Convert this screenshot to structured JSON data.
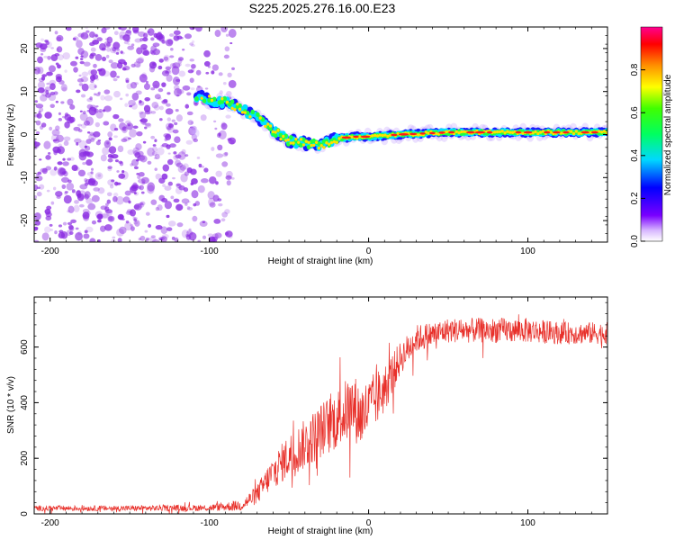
{
  "title": "S225.2025.276.16.00.E23",
  "colors": {
    "snr_line": "#e8302a",
    "scatter": "#8a2be2",
    "axis": "#000000"
  },
  "chart_data": [
    {
      "type": "heatmap",
      "name": "spectrogram",
      "title": "",
      "xlabel": "Height of straight line (km)",
      "ylabel": "Frequency (Hz)",
      "xlim": [
        -210,
        150
      ],
      "ylim": [
        -25,
        25
      ],
      "xticks": [
        -200,
        -100,
        0,
        100
      ],
      "yticks": [
        -20,
        -10,
        0,
        10,
        20
      ],
      "colorbar": {
        "label": "Normalized spectral amplitude",
        "range": [
          0,
          1
        ],
        "ticks": [
          "0.0",
          "0.2",
          "0.4",
          "0.6",
          "0.8"
        ],
        "tick_values": [
          0.0,
          0.2,
          0.4,
          0.6,
          0.8
        ]
      },
      "ridge": {
        "description_points_x": [
          -108,
          -100,
          -90,
          -80,
          -70,
          -60,
          -50,
          -40,
          -30,
          -20,
          -10,
          0,
          20,
          50,
          100,
          150
        ],
        "description_points_y": [
          9,
          8,
          7.5,
          6,
          4,
          1,
          -1.5,
          -2,
          -2.5,
          -1,
          -0.5,
          -0.5,
          0,
          0.5,
          0.5,
          0.5
        ]
      },
      "noise_region_x": [
        -210,
        -85
      ]
    },
    {
      "type": "line",
      "name": "snr",
      "title": "",
      "xlabel": "Height of straight line (km)",
      "ylabel": "SNR (10 * v/v)",
      "xlim": [
        -210,
        150
      ],
      "ylim": [
        0,
        780
      ],
      "xticks": [
        -200,
        -100,
        0,
        100
      ],
      "yticks": [
        0,
        200,
        400,
        600
      ],
      "series": [
        {
          "name": "SNR",
          "x": [
            -210,
            -150,
            -100,
            -80,
            -70,
            -60,
            -55,
            -50,
            -40,
            -30,
            -20,
            -10,
            -5,
            0,
            10,
            20,
            30,
            50,
            80,
            100,
            120,
            150
          ],
          "mean": [
            20,
            20,
            22,
            30,
            70,
            150,
            180,
            210,
            250,
            300,
            340,
            390,
            350,
            380,
            450,
            560,
            630,
            660,
            660,
            660,
            650,
            650
          ],
          "amp": [
            10,
            10,
            12,
            20,
            35,
            60,
            70,
            80,
            90,
            100,
            110,
            120,
            120,
            110,
            90,
            60,
            50,
            45,
            45,
            45,
            40,
            40
          ]
        }
      ]
    }
  ]
}
